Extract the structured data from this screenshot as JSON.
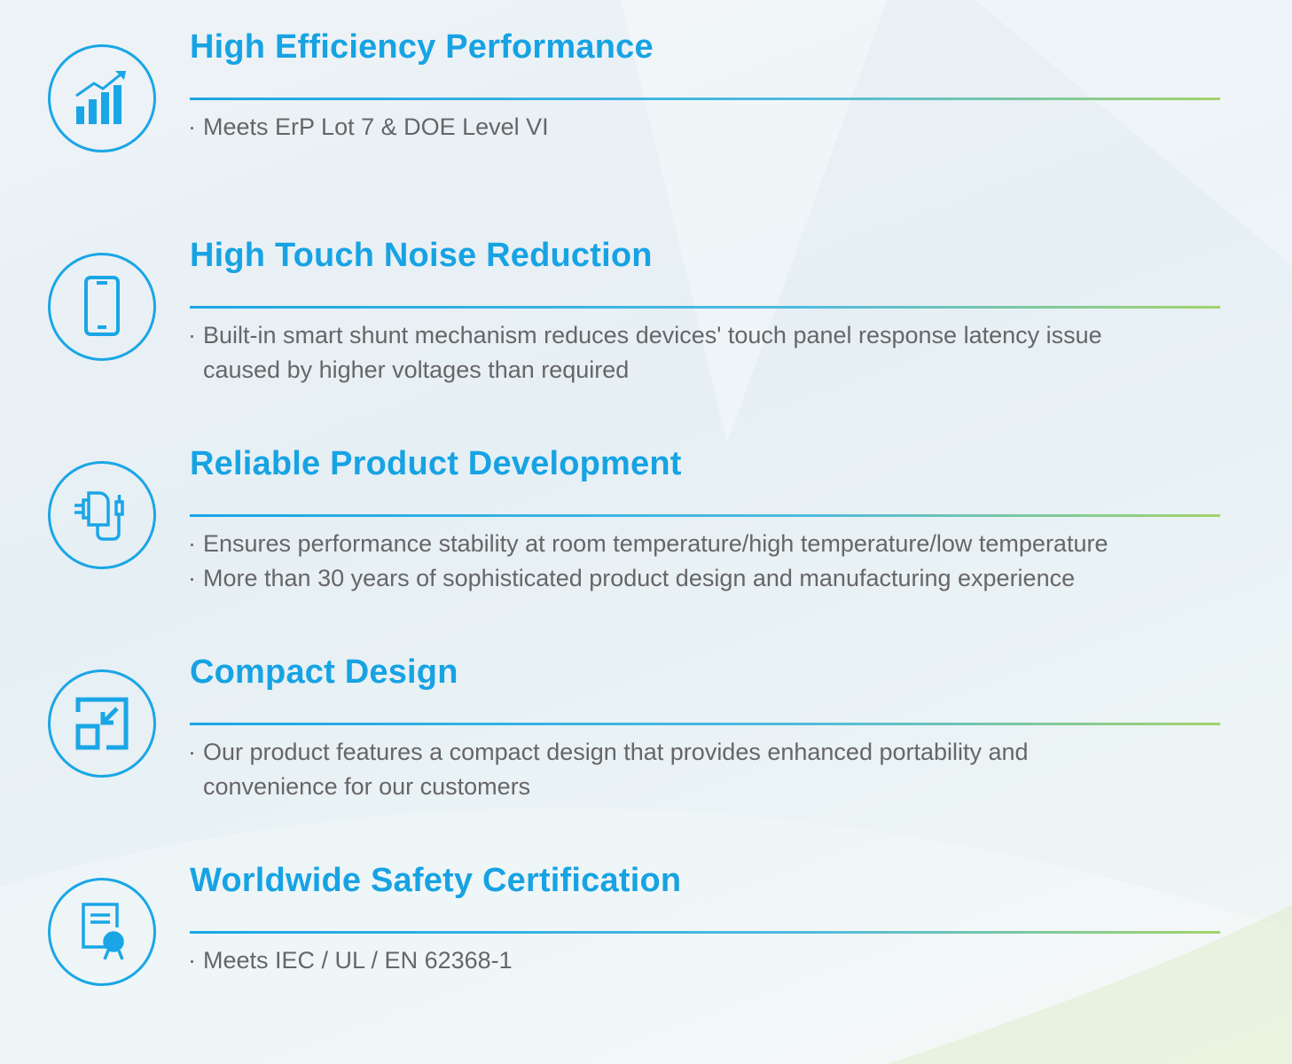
{
  "colors": {
    "accent": "#17a3e3",
    "text": "#666666",
    "rule_end": "#a3d36a"
  },
  "features": [
    {
      "icon": "bar-chart-growth-icon",
      "title": "High Efficiency Performance",
      "bullets": [
        [
          "Meets ErP Lot 7 & DOE Level VI"
        ]
      ]
    },
    {
      "icon": "smartphone-icon",
      "title": "High Touch Noise Reduction",
      "bullets": [
        [
          "Built-in smart shunt mechanism reduces devices' touch panel response latency issue",
          "caused by higher voltages than required"
        ]
      ]
    },
    {
      "icon": "power-adapter-icon",
      "title": "Reliable Product Development",
      "bullets": [
        [
          "Ensures performance stability at room temperature/high temperature/low temperature"
        ],
        [
          "More than 30 years of sophisticated product  design and manufacturing experience"
        ]
      ]
    },
    {
      "icon": "compact-resize-icon",
      "title": "Compact Design",
      "bullets": [
        [
          "Our product features a compact design that provides enhanced portability and",
          "convenience for our customers"
        ]
      ]
    },
    {
      "icon": "certificate-icon",
      "title": "Worldwide Safety Certification",
      "bullets": [
        [
          "Meets IEC / UL / EN 62368-1"
        ]
      ]
    }
  ],
  "bullet_marker": "·"
}
